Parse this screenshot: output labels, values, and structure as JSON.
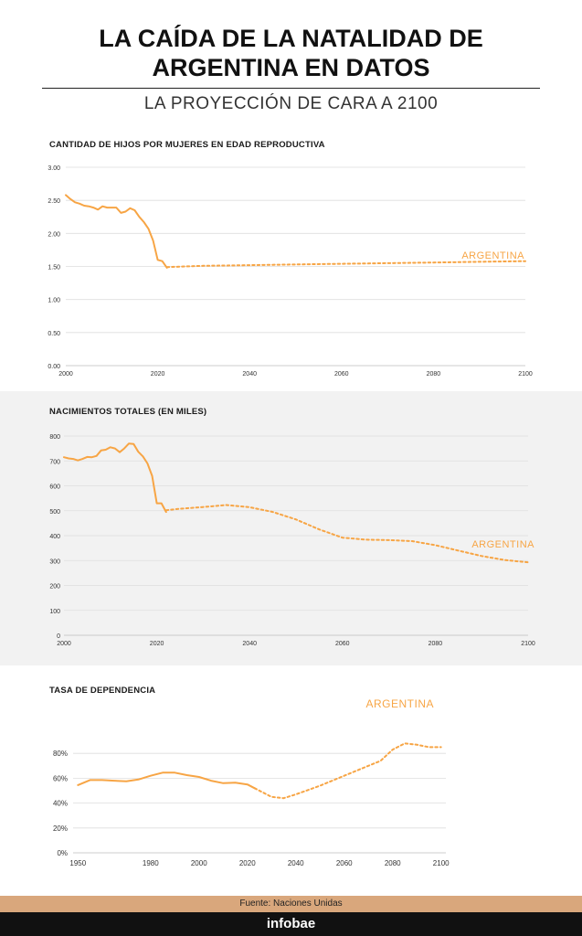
{
  "header": {
    "title_line1": "LA CAÍDA DE LA NATALIDAD DE",
    "title_line2": "ARGENTINA EN DATOS",
    "subtitle": "LA PROYECCIÓN DE CARA A 2100"
  },
  "colors": {
    "series": "#f7a545",
    "grid": "#dedede",
    "panel_alt": "#f2f2f2",
    "footer": "#d9a77c"
  },
  "footer": {
    "source": "Fuente: Naciones Unidas",
    "brand": "infobae"
  },
  "chart_data": [
    {
      "type": "line",
      "title": "CANTIDAD DE HIJOS POR MUJERES EN EDAD REPRODUCTIVA",
      "xlim": [
        2000,
        2100
      ],
      "ylim": [
        0,
        3
      ],
      "xticks": [
        "2000",
        "2020",
        "2040",
        "2060",
        "2080",
        "2100"
      ],
      "yticks": [
        "0.00",
        "0.50",
        "1.00",
        "1.50",
        "2.00",
        "2.50",
        "3.00"
      ],
      "grid": true,
      "series": [
        {
          "name": "ARGENTINA",
          "x": [
            2000,
            2001,
            2002,
            2003,
            2004,
            2005,
            2006,
            2007,
            2008,
            2009,
            2010,
            2011,
            2012,
            2013,
            2014,
            2015,
            2016,
            2017,
            2018,
            2019,
            2020,
            2021,
            2022
          ],
          "y": [
            2.58,
            2.52,
            2.47,
            2.45,
            2.42,
            2.41,
            2.39,
            2.36,
            2.41,
            2.39,
            2.39,
            2.39,
            2.31,
            2.33,
            2.38,
            2.35,
            2.25,
            2.17,
            2.07,
            1.89,
            1.6,
            1.58,
            1.48
          ]
        },
        {
          "name": "",
          "style": "dotted",
          "x": [
            2022,
            2030,
            2040,
            2050,
            2060,
            2070,
            2080,
            2090,
            2100
          ],
          "y": [
            1.49,
            1.51,
            1.52,
            1.53,
            1.54,
            1.55,
            1.56,
            1.57,
            1.58
          ]
        }
      ]
    },
    {
      "type": "line",
      "title": "NACIMIENTOS TOTALES (EN MILES)",
      "xlim": [
        2000,
        2100
      ],
      "ylim": [
        0,
        800
      ],
      "xticks": [
        "2000",
        "2020",
        "2040",
        "2060",
        "2080",
        "2100"
      ],
      "yticks": [
        "0",
        "100",
        "200",
        "300",
        "400",
        "500",
        "600",
        "700",
        "800"
      ],
      "grid": true,
      "series": [
        {
          "name": "ARGENTINA",
          "x": [
            2000,
            2001,
            2002,
            2003,
            2004,
            2005,
            2006,
            2007,
            2008,
            2009,
            2010,
            2011,
            2012,
            2013,
            2014,
            2015,
            2016,
            2017,
            2018,
            2019,
            2020,
            2021,
            2022
          ],
          "y": [
            715,
            710,
            708,
            702,
            708,
            716,
            715,
            720,
            742,
            745,
            755,
            750,
            735,
            750,
            770,
            768,
            737,
            718,
            690,
            640,
            530,
            530,
            495
          ],
          "y_label_unit": "miles"
        },
        {
          "name": "",
          "style": "dotted",
          "x": [
            2022,
            2025,
            2030,
            2035,
            2040,
            2045,
            2050,
            2055,
            2060,
            2065,
            2070,
            2075,
            2080,
            2085,
            2090,
            2095,
            2100
          ],
          "y": [
            502,
            508,
            515,
            523,
            514,
            495,
            465,
            425,
            392,
            384,
            382,
            378,
            362,
            340,
            318,
            302,
            293
          ]
        }
      ]
    },
    {
      "type": "line",
      "title": "TASA DE DEPENDENCIA",
      "xlim": [
        1948,
        2102
      ],
      "ylim": [
        0,
        100
      ],
      "xticks": [
        "1950",
        "1980",
        "2000",
        "2020",
        "2040",
        "2060",
        "2080",
        "2100"
      ],
      "ytick_values": [
        0,
        20,
        40,
        60,
        80
      ],
      "yticks": [
        "0%",
        "20%",
        "40%",
        "60%",
        "80%"
      ],
      "grid": true,
      "series": [
        {
          "name": "ARGENTINA",
          "x": [
            1950,
            1955,
            1960,
            1965,
            1970,
            1975,
            1980,
            1985,
            1990,
            1995,
            2000,
            2005,
            2010,
            2015,
            2020,
            2023
          ],
          "y": [
            54.5,
            58.5,
            58.5,
            58,
            57.5,
            59,
            62,
            64.5,
            64.5,
            62.5,
            61,
            58,
            56,
            56.5,
            55,
            52
          ]
        },
        {
          "name": "",
          "style": "dotted",
          "x": [
            2023,
            2030,
            2035,
            2040,
            2050,
            2060,
            2070,
            2075,
            2080,
            2085,
            2090,
            2095,
            2100
          ],
          "y": [
            52,
            45,
            44,
            47,
            54,
            62,
            70,
            74,
            83,
            88,
            87,
            85,
            85
          ]
        }
      ]
    }
  ]
}
